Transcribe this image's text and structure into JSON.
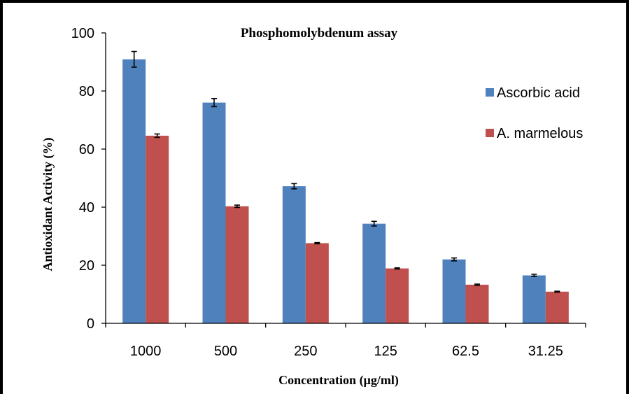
{
  "chart_data": {
    "type": "bar",
    "title": "Phosphomolybdenum assay",
    "xlabel": "Concentration (µg/ml)",
    "ylabel": "Antioxidant Activity (%)",
    "categories": [
      "1000",
      "500",
      "250",
      "125",
      "62.5",
      "31.25"
    ],
    "ylim": [
      0,
      100
    ],
    "yticks": [
      0,
      20,
      40,
      60,
      80,
      100
    ],
    "grid": false,
    "legend_position": "right",
    "series": [
      {
        "name": "Ascorbic acid",
        "color": "#4F81BD",
        "values": [
          90.9,
          76.0,
          47.2,
          34.3,
          22.0,
          16.5
        ],
        "errors": [
          2.7,
          1.4,
          0.9,
          0.8,
          0.5,
          0.4
        ]
      },
      {
        "name": "A. marmelous",
        "color": "#C0504D",
        "values": [
          64.6,
          40.3,
          27.6,
          18.9,
          13.3,
          10.9
        ],
        "errors": [
          0.6,
          0.4,
          0.2,
          0.2,
          0.2,
          0.15
        ]
      }
    ]
  }
}
